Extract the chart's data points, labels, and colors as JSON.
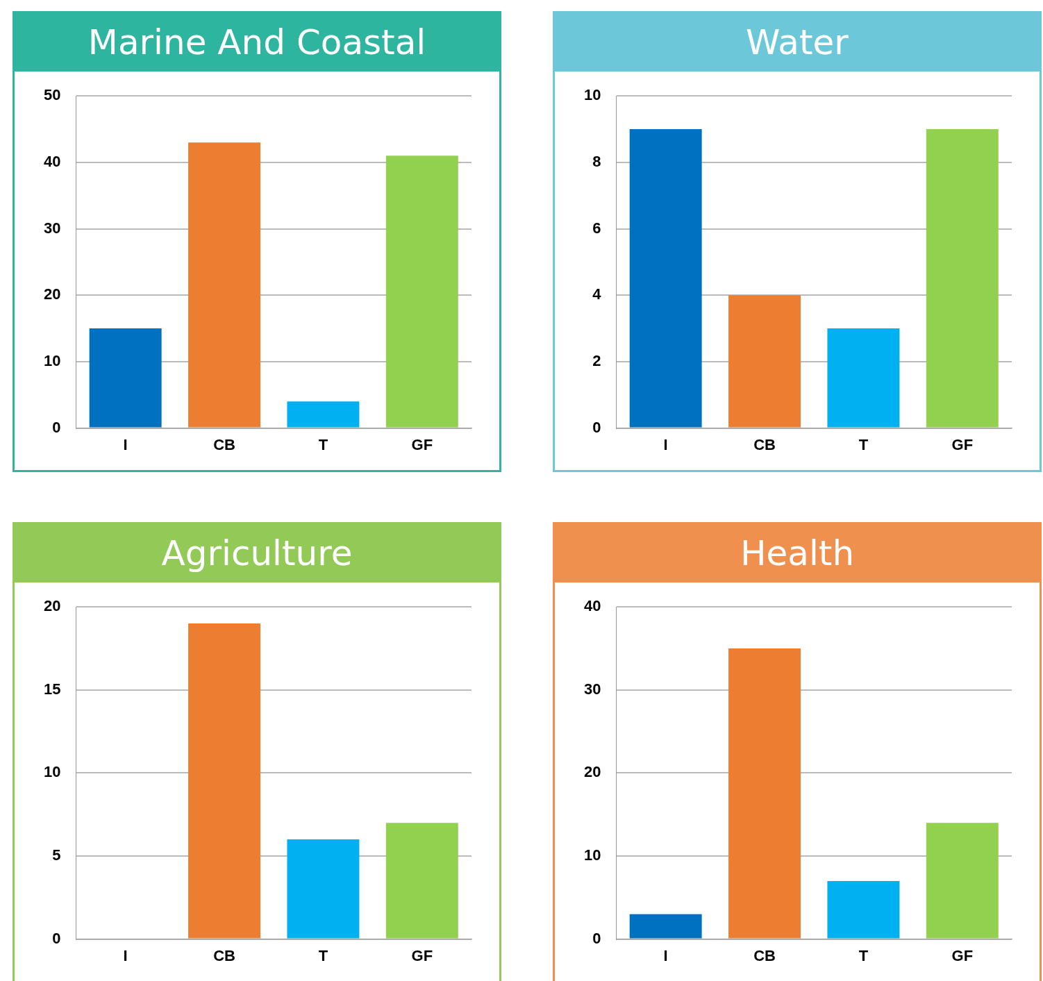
{
  "chart_data": [
    {
      "type": "bar",
      "title": "Marine And Coastal",
      "categories": [
        "I",
        "CB",
        "T",
        "GF"
      ],
      "values": [
        15,
        43,
        4,
        41
      ],
      "colors": [
        "#0070c0",
        "#ed7d31",
        "#00b0f0",
        "#92d050"
      ],
      "ylim": [
        0,
        50
      ],
      "yticks": [
        0,
        10,
        20,
        30,
        40,
        50
      ],
      "grid": "y",
      "legend": false
    },
    {
      "type": "bar",
      "title": "Water",
      "categories": [
        "I",
        "CB",
        "T",
        "GF"
      ],
      "values": [
        9,
        4,
        3,
        9
      ],
      "colors": [
        "#0070c0",
        "#ed7d31",
        "#00b0f0",
        "#92d050"
      ],
      "ylim": [
        0,
        10
      ],
      "yticks": [
        0,
        2,
        4,
        6,
        8,
        10
      ],
      "grid": "y",
      "legend": false
    },
    {
      "type": "bar",
      "title": "Agriculture",
      "categories": [
        "I",
        "CB",
        "T",
        "GF"
      ],
      "values": [
        0,
        19,
        6,
        7
      ],
      "colors": [
        "#0070c0",
        "#ed7d31",
        "#00b0f0",
        "#92d050"
      ],
      "ylim": [
        0,
        20
      ],
      "yticks": [
        0,
        5,
        10,
        15,
        20
      ],
      "grid": "y",
      "legend": false
    },
    {
      "type": "bar",
      "title": "Health",
      "categories": [
        "I",
        "CB",
        "T",
        "GF"
      ],
      "values": [
        3,
        35,
        7,
        14
      ],
      "colors": [
        "#0070c0",
        "#ed7d31",
        "#00b0f0",
        "#92d050"
      ],
      "ylim": [
        0,
        40
      ],
      "yticks": [
        0,
        10,
        20,
        30,
        40
      ],
      "grid": "y",
      "legend": false
    }
  ]
}
